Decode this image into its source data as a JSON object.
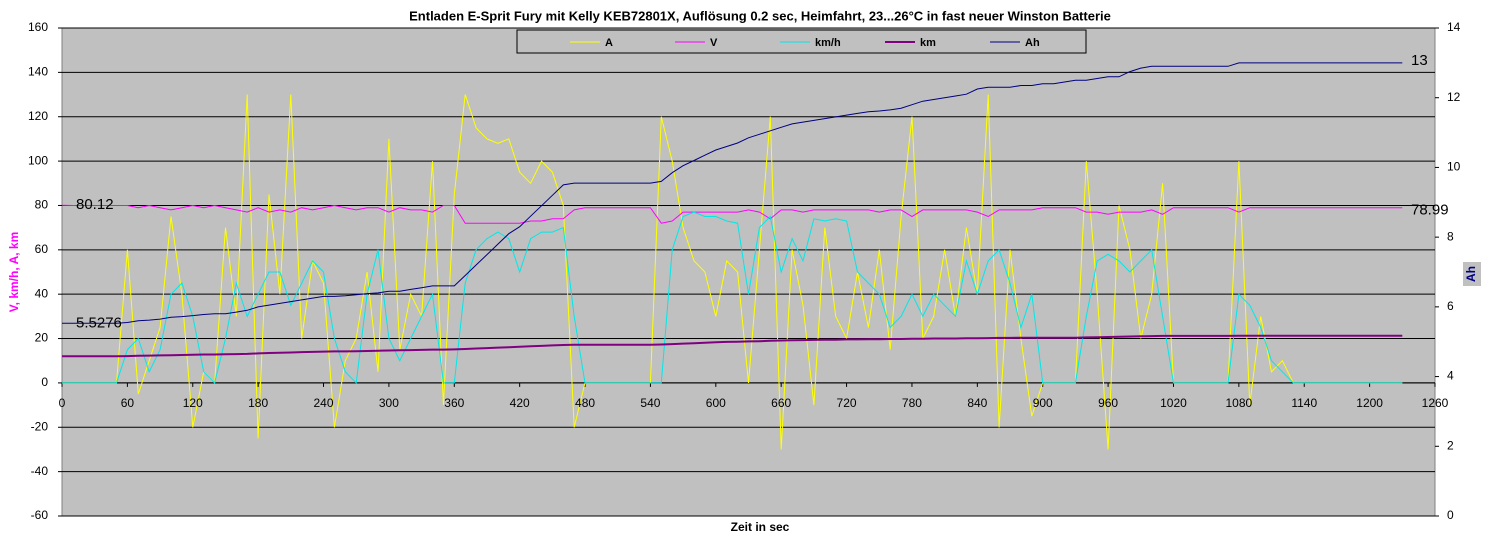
{
  "chart_data": {
    "type": "line",
    "title": "Entladen E-Sprit Fury mit Kelly KEB72801X, Auflösung 0.2 sec, Heimfahrt, 23...26°C  in fast neuer Winston Batterie",
    "x_label": "Zeit in sec",
    "y_label": "V, km/h, A, km",
    "y2_label": "Ah",
    "annotations": [
      "80.12",
      "5.5276",
      "78.99",
      "13"
    ],
    "xlim": [
      0,
      1260
    ],
    "xticks": [
      0,
      60,
      120,
      180,
      240,
      300,
      360,
      420,
      480,
      540,
      600,
      660,
      720,
      780,
      840,
      900,
      960,
      1020,
      1080,
      1140,
      1200,
      1260
    ],
    "ylim": [
      -60,
      160
    ],
    "yticks": [
      -60,
      -40,
      -20,
      0,
      20,
      40,
      60,
      80,
      100,
      120,
      140,
      160
    ],
    "y2lim": [
      0,
      14
    ],
    "y2ticks": [
      0,
      2,
      4,
      6,
      8,
      10,
      12,
      14
    ],
    "grid": true,
    "legend": "top",
    "x": [
      0,
      10,
      20,
      30,
      40,
      50,
      60,
      70,
      80,
      90,
      100,
      110,
      120,
      130,
      140,
      150,
      160,
      170,
      180,
      190,
      200,
      210,
      220,
      230,
      240,
      250,
      260,
      270,
      280,
      290,
      300,
      310,
      320,
      330,
      340,
      350,
      360,
      370,
      380,
      390,
      400,
      410,
      420,
      430,
      440,
      450,
      460,
      470,
      480,
      490,
      500,
      510,
      520,
      530,
      540,
      550,
      560,
      570,
      580,
      590,
      600,
      610,
      620,
      630,
      640,
      650,
      660,
      670,
      680,
      690,
      700,
      710,
      720,
      730,
      740,
      750,
      760,
      770,
      780,
      790,
      800,
      810,
      820,
      830,
      840,
      850,
      860,
      870,
      880,
      890,
      900,
      910,
      920,
      930,
      940,
      950,
      960,
      970,
      980,
      990,
      1000,
      1010,
      1020,
      1030,
      1040,
      1050,
      1060,
      1070,
      1080,
      1090,
      1100,
      1110,
      1120,
      1130,
      1140,
      1150,
      1160,
      1170,
      1180,
      1190,
      1200,
      1210,
      1220,
      1230
    ],
    "series": [
      {
        "name": "A",
        "color": "#ffff00",
        "values": [
          0,
          0,
          0,
          0,
          0,
          0,
          60,
          -5,
          10,
          25,
          75,
          40,
          -20,
          5,
          0,
          70,
          30,
          130,
          -25,
          85,
          40,
          130,
          20,
          55,
          45,
          -20,
          10,
          20,
          50,
          5,
          110,
          15,
          40,
          30,
          100,
          -10,
          85,
          130,
          115,
          110,
          108,
          110,
          95,
          90,
          100,
          95,
          80,
          -20,
          0,
          0,
          0,
          0,
          0,
          0,
          0,
          120,
          100,
          70,
          55,
          50,
          30,
          55,
          50,
          0,
          60,
          120,
          -30,
          60,
          35,
          -10,
          70,
          30,
          20,
          50,
          25,
          60,
          15,
          75,
          120,
          20,
          30,
          60,
          30,
          70,
          40,
          130,
          -20,
          60,
          20,
          -15,
          0,
          0,
          0,
          0,
          100,
          40,
          -30,
          80,
          60,
          20,
          40,
          90,
          0,
          0,
          0,
          0,
          0,
          0,
          100,
          -10,
          30,
          5,
          10,
          0,
          0,
          0,
          0,
          0,
          0,
          0,
          0,
          0,
          0,
          0
        ]
      },
      {
        "name": "V",
        "color": "#ff00ff",
        "values": [
          80.12,
          80,
          80,
          80,
          80,
          80,
          80,
          79,
          80,
          79,
          78,
          79,
          80,
          79,
          80,
          79,
          78,
          77,
          79,
          77,
          78,
          77,
          79,
          78,
          79,
          80,
          79,
          78,
          79,
          79,
          77,
          79,
          78,
          78,
          77,
          80,
          80,
          72,
          72,
          72,
          72,
          72,
          72,
          73,
          73,
          74,
          74,
          78,
          79,
          79,
          79,
          79,
          79,
          79,
          79,
          72,
          73,
          77,
          77,
          77,
          77,
          77,
          77,
          78,
          77,
          74,
          78,
          78,
          77,
          78,
          78,
          78,
          78,
          78,
          78,
          77,
          78,
          78,
          75,
          78,
          78,
          78,
          78,
          78,
          77,
          75,
          78,
          78,
          78,
          78,
          79,
          79,
          79,
          79,
          77,
          77,
          76,
          77,
          77,
          77,
          78,
          76,
          79,
          79,
          79,
          79,
          79,
          79,
          77,
          79,
          79,
          79,
          79,
          79,
          79,
          79,
          79,
          79,
          79,
          79,
          79,
          79,
          79,
          78.99
        ]
      },
      {
        "name": "km/h",
        "color": "#00e8e8",
        "values": [
          0,
          0,
          0,
          0,
          0,
          0,
          15,
          20,
          5,
          15,
          40,
          45,
          30,
          5,
          0,
          20,
          45,
          30,
          40,
          50,
          50,
          35,
          45,
          55,
          50,
          20,
          5,
          0,
          40,
          60,
          20,
          10,
          20,
          30,
          40,
          0,
          0,
          45,
          60,
          65,
          68,
          65,
          50,
          65,
          68,
          68,
          70,
          30,
          0,
          0,
          0,
          0,
          0,
          0,
          0,
          0,
          60,
          75,
          77,
          75,
          75,
          73,
          72,
          40,
          70,
          75,
          50,
          65,
          55,
          74,
          73,
          74,
          73,
          50,
          45,
          40,
          25,
          30,
          40,
          30,
          40,
          35,
          30,
          55,
          40,
          55,
          60,
          45,
          25,
          40,
          0,
          0,
          0,
          0,
          30,
          55,
          58,
          55,
          50,
          55,
          60,
          30,
          0,
          0,
          0,
          0,
          0,
          0,
          40,
          35,
          25,
          10,
          5,
          0,
          0,
          0,
          0,
          0,
          0,
          0,
          0,
          0,
          0,
          0
        ]
      },
      {
        "name": "km",
        "color": "#800080",
        "values": [
          12,
          12,
          12,
          12,
          12,
          12,
          12.1,
          12.2,
          12.3,
          12.4,
          12.5,
          12.6,
          12.7,
          12.8,
          12.8,
          12.9,
          13,
          13.1,
          13.3,
          13.5,
          13.6,
          13.7,
          13.9,
          14,
          14.1,
          14.2,
          14.2,
          14.3,
          14.4,
          14.5,
          14.6,
          14.7,
          14.8,
          14.9,
          15,
          15,
          15.1,
          15.3,
          15.5,
          15.7,
          15.9,
          16.1,
          16.3,
          16.5,
          16.7,
          16.9,
          17.1,
          17.2,
          17.2,
          17.2,
          17.2,
          17.2,
          17.2,
          17.2,
          17.2,
          17.3,
          17.5,
          17.7,
          17.9,
          18.1,
          18.3,
          18.5,
          18.6,
          18.7,
          18.8,
          19,
          19.1,
          19.2,
          19.3,
          19.4,
          19.5,
          19.5,
          19.6,
          19.6,
          19.7,
          19.7,
          19.8,
          19.8,
          19.9,
          19.9,
          20,
          20,
          20,
          20.1,
          20.1,
          20.2,
          20.3,
          20.3,
          20.4,
          20.4,
          20.4,
          20.4,
          20.4,
          20.4,
          20.5,
          20.6,
          20.7,
          20.8,
          20.9,
          21,
          21.1,
          21.2,
          21.2,
          21.2,
          21.2,
          21.2,
          21.2,
          21.2,
          21.3,
          21.3,
          21.3,
          21.3,
          21.3,
          21.3,
          21.3,
          21.3,
          21.3,
          21.3,
          21.3,
          21.3,
          21.3,
          21.3,
          21.3,
          21.3
        ]
      },
      {
        "name": "Ah",
        "color": "#000080",
        "axis": "y2",
        "values": [
          5.5276,
          5.53,
          5.53,
          5.53,
          5.53,
          5.53,
          5.55,
          5.6,
          5.62,
          5.65,
          5.7,
          5.72,
          5.75,
          5.78,
          5.8,
          5.8,
          5.85,
          5.9,
          6,
          6.05,
          6.1,
          6.15,
          6.2,
          6.25,
          6.3,
          6.3,
          6.32,
          6.35,
          6.38,
          6.4,
          6.45,
          6.45,
          6.5,
          6.55,
          6.6,
          6.6,
          6.6,
          6.9,
          7.2,
          7.5,
          7.8,
          8.1,
          8.3,
          8.6,
          8.9,
          9.2,
          9.5,
          9.55,
          9.55,
          9.55,
          9.55,
          9.55,
          9.55,
          9.55,
          9.55,
          9.6,
          9.85,
          10.05,
          10.2,
          10.35,
          10.5,
          10.6,
          10.7,
          10.85,
          10.95,
          11.05,
          11.15,
          11.25,
          11.3,
          11.35,
          11.4,
          11.45,
          11.5,
          11.55,
          11.6,
          11.62,
          11.65,
          11.7,
          11.8,
          11.9,
          11.95,
          12,
          12.05,
          12.1,
          12.25,
          12.3,
          12.3,
          12.3,
          12.35,
          12.35,
          12.4,
          12.4,
          12.45,
          12.5,
          12.5,
          12.55,
          12.6,
          12.6,
          12.75,
          12.85,
          12.9,
          12.9,
          12.9,
          12.9,
          12.9,
          12.9,
          12.9,
          12.9,
          13,
          13,
          13,
          13,
          13,
          13,
          13,
          13,
          13,
          13,
          13,
          13,
          13,
          13,
          13,
          13
        ]
      }
    ]
  }
}
